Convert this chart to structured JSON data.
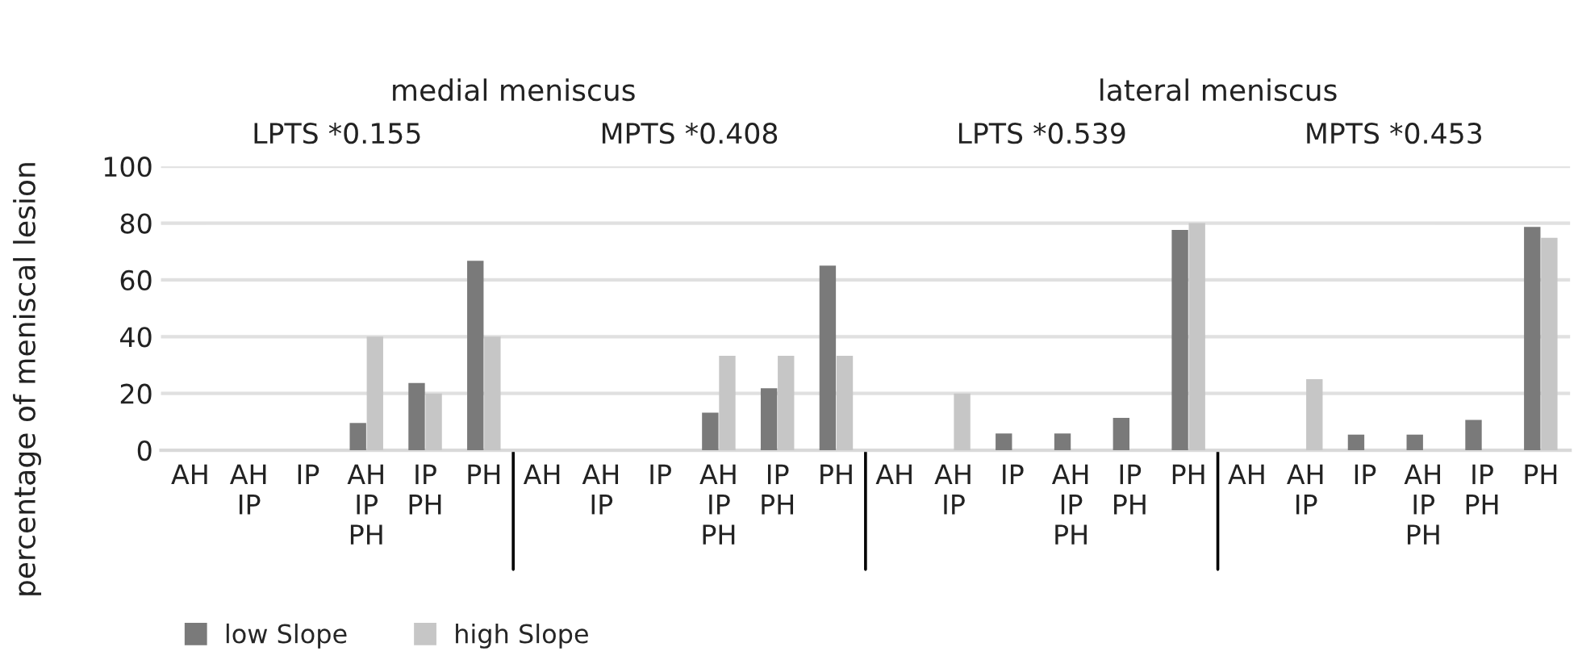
{
  "chart_data": {
    "type": "bar",
    "categories": [
      "AH",
      "AH\nIP",
      "IP",
      "AH\nIP\nPH",
      "IP\nPH",
      "PH",
      "AH",
      "AH\nIP",
      "IP",
      "AH\nIP\nPH",
      "IP\nPH",
      "PH",
      "AH",
      "AH\nIP",
      "IP",
      "AH\nIP\nPH",
      "IP\nPH",
      "PH",
      "AH",
      "AH\nIP",
      "IP",
      "AH\nIP\nPH",
      "IP\nPH",
      "PH"
    ],
    "series": [
      {
        "name": "low Slope",
        "color": "#7a7a7a",
        "values": [
          null,
          null,
          null,
          9.6,
          23.7,
          66.7,
          null,
          null,
          null,
          13.2,
          21.8,
          65,
          null,
          null,
          5.9,
          5.9,
          11.4,
          77.6,
          null,
          null,
          5.5,
          5.5,
          10.7,
          78.7
        ]
      },
      {
        "name": "high Slope",
        "color": "#c6c6c6",
        "values": [
          null,
          null,
          null,
          40,
          20,
          40,
          null,
          null,
          null,
          33.3,
          33.3,
          33.3,
          null,
          20,
          null,
          null,
          null,
          80,
          null,
          25,
          null,
          null,
          null,
          74.8
        ]
      }
    ],
    "ylabel": "percentage of meniscal lesion",
    "ylim": [
      0,
      100
    ],
    "yticks": [
      0,
      20,
      40,
      60,
      80,
      100
    ],
    "grid": "y",
    "legend": "bottom left",
    "annotations": [
      "medial meniscus",
      "lateral meniscus",
      "LPTS *0.155",
      "MPTS *0.408",
      "LPTS *0.539",
      "MPTS *0.453"
    ]
  }
}
